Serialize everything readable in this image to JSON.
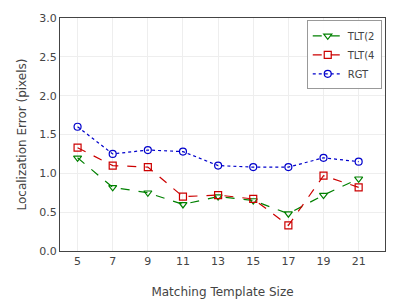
{
  "chart_data": {
    "type": "line",
    "xlabel": "Matching Template Size",
    "ylabel": "Localization Error (pixels)",
    "x": [
      5,
      7,
      9,
      11,
      13,
      15,
      17,
      19,
      21
    ],
    "series": [
      {
        "name": "TLT(2",
        "color": "#008000",
        "marker": "triangle-down",
        "line_style": "dashed",
        "values": [
          1.2,
          0.82,
          0.75,
          0.6,
          0.7,
          0.65,
          0.48,
          0.72,
          0.93
        ]
      },
      {
        "name": "TLT(4",
        "color": "#cc0000",
        "marker": "square",
        "line_style": "dashed",
        "values": [
          1.33,
          1.1,
          1.08,
          0.7,
          0.72,
          0.67,
          0.33,
          0.97,
          0.82
        ]
      },
      {
        "name": "RGT",
        "color": "#0000cc",
        "marker": "circle",
        "line_style": "dotted",
        "values": [
          1.6,
          1.25,
          1.3,
          1.28,
          1.1,
          1.08,
          1.08,
          1.2,
          1.15
        ]
      }
    ],
    "xlim": [
      4.0,
      22.5
    ],
    "ylim": [
      0,
      3.0
    ],
    "xticks": [
      5,
      7,
      9,
      11,
      13,
      15,
      17,
      19,
      21
    ],
    "yticks": [
      {
        "value": 0,
        "label": "0.0"
      },
      0.5,
      {
        "value": 1.0,
        "label": "1.0"
      },
      1.5,
      {
        "value": 2.0,
        "label": "2.0"
      },
      2.5,
      {
        "value": 3.0,
        "label": "3.0"
      }
    ],
    "grid": true,
    "legend": "upper right"
  }
}
